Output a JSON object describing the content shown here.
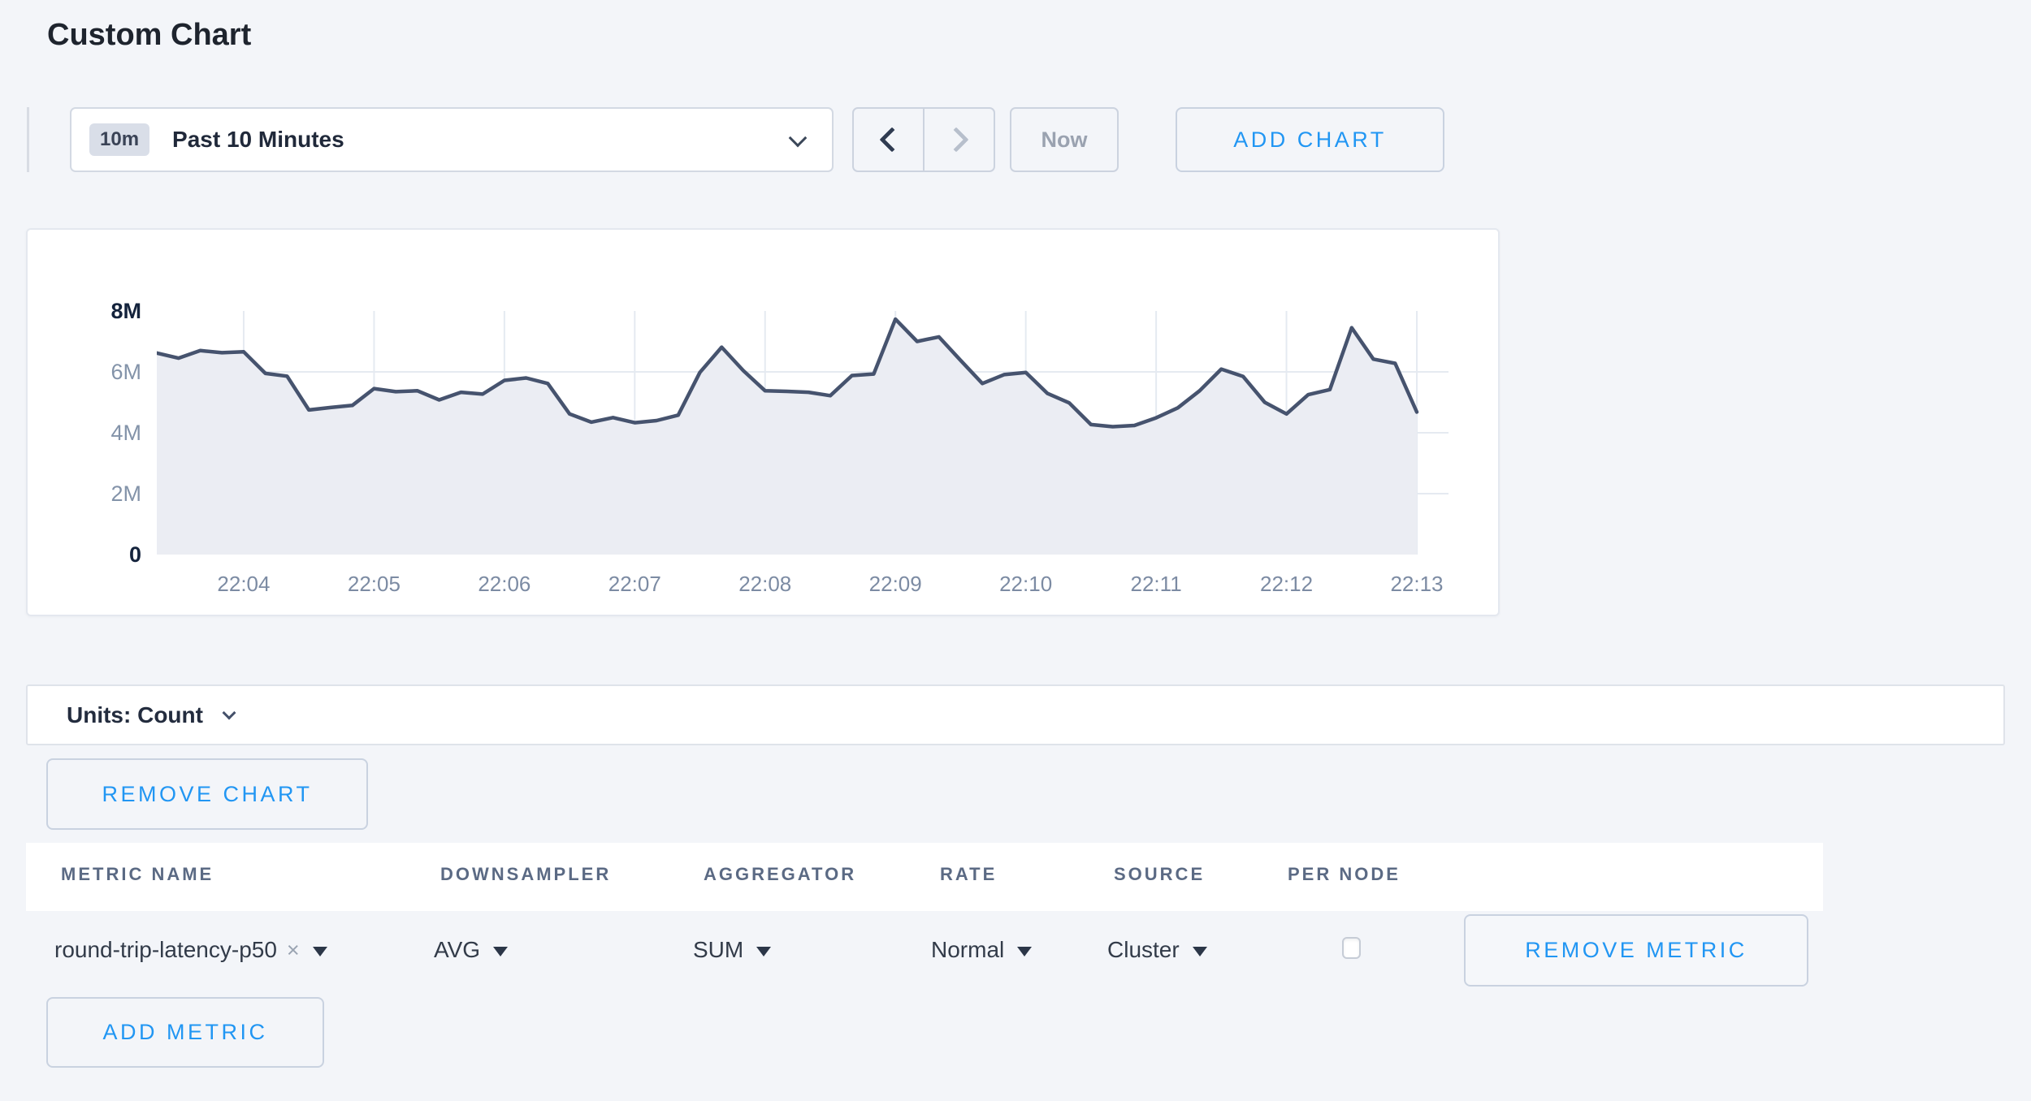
{
  "page": {
    "title": "Custom Chart",
    "background": "#f3f5f9",
    "accent_blue": "#2196f3"
  },
  "toolbar": {
    "time_badge": "10m",
    "time_label": "Past 10 Minutes",
    "now_label": "Now",
    "add_chart_label": "ADD CHART"
  },
  "chart_data": {
    "type": "area",
    "title": "",
    "start_time": "22:03:20",
    "interval_seconds": 10,
    "values_millions": [
      6.62,
      6.45,
      6.7,
      6.63,
      6.66,
      5.95,
      5.86,
      4.75,
      4.83,
      4.9,
      5.45,
      5.35,
      5.38,
      5.08,
      5.33,
      5.27,
      5.72,
      5.8,
      5.62,
      4.62,
      4.35,
      4.5,
      4.33,
      4.4,
      4.58,
      5.98,
      6.81,
      6.04,
      5.38,
      5.36,
      5.33,
      5.22,
      5.88,
      5.93,
      7.73,
      7.0,
      7.15,
      6.38,
      5.62,
      5.91,
      5.98,
      5.29,
      4.98,
      4.27,
      4.2,
      4.24,
      4.49,
      4.82,
      5.38,
      6.09,
      5.85,
      5.0,
      4.62,
      5.25,
      5.42,
      7.45,
      6.42,
      6.28,
      4.68
    ],
    "x_ticks": [
      "22:04",
      "22:05",
      "22:06",
      "22:07",
      "22:08",
      "22:09",
      "22:10",
      "22:11",
      "22:12",
      "22:13"
    ],
    "y_ticks": [
      {
        "label": "0",
        "value_millions": 0,
        "strong": true
      },
      {
        "label": "2M",
        "value_millions": 2,
        "strong": false
      },
      {
        "label": "4M",
        "value_millions": 4,
        "strong": false
      },
      {
        "label": "6M",
        "value_millions": 6,
        "strong": false
      },
      {
        "label": "8M",
        "value_millions": 8,
        "strong": true
      }
    ],
    "ylim_millions": [
      0,
      8
    ],
    "grid": true,
    "legend_position": "none",
    "line_color": "#46536e",
    "fill_color": "#ebedf3",
    "grid_color": "#e5eaf1"
  },
  "units_bar": {
    "label": "Units: Count"
  },
  "chart_actions": {
    "remove_chart_label": "REMOVE CHART"
  },
  "metrics_table": {
    "headers": [
      "METRIC NAME",
      "DOWNSAMPLER",
      "AGGREGATOR",
      "RATE",
      "SOURCE",
      "PER NODE"
    ],
    "rows": [
      {
        "metric_name": "round-trip-latency-p50",
        "downsampler": "AVG",
        "aggregator": "SUM",
        "rate": "Normal",
        "source": "Cluster",
        "per_node_checked": false,
        "remove_label": "REMOVE METRIC"
      }
    ],
    "add_metric_label": "ADD METRIC"
  },
  "icons": {
    "clear_glyph": "×"
  }
}
